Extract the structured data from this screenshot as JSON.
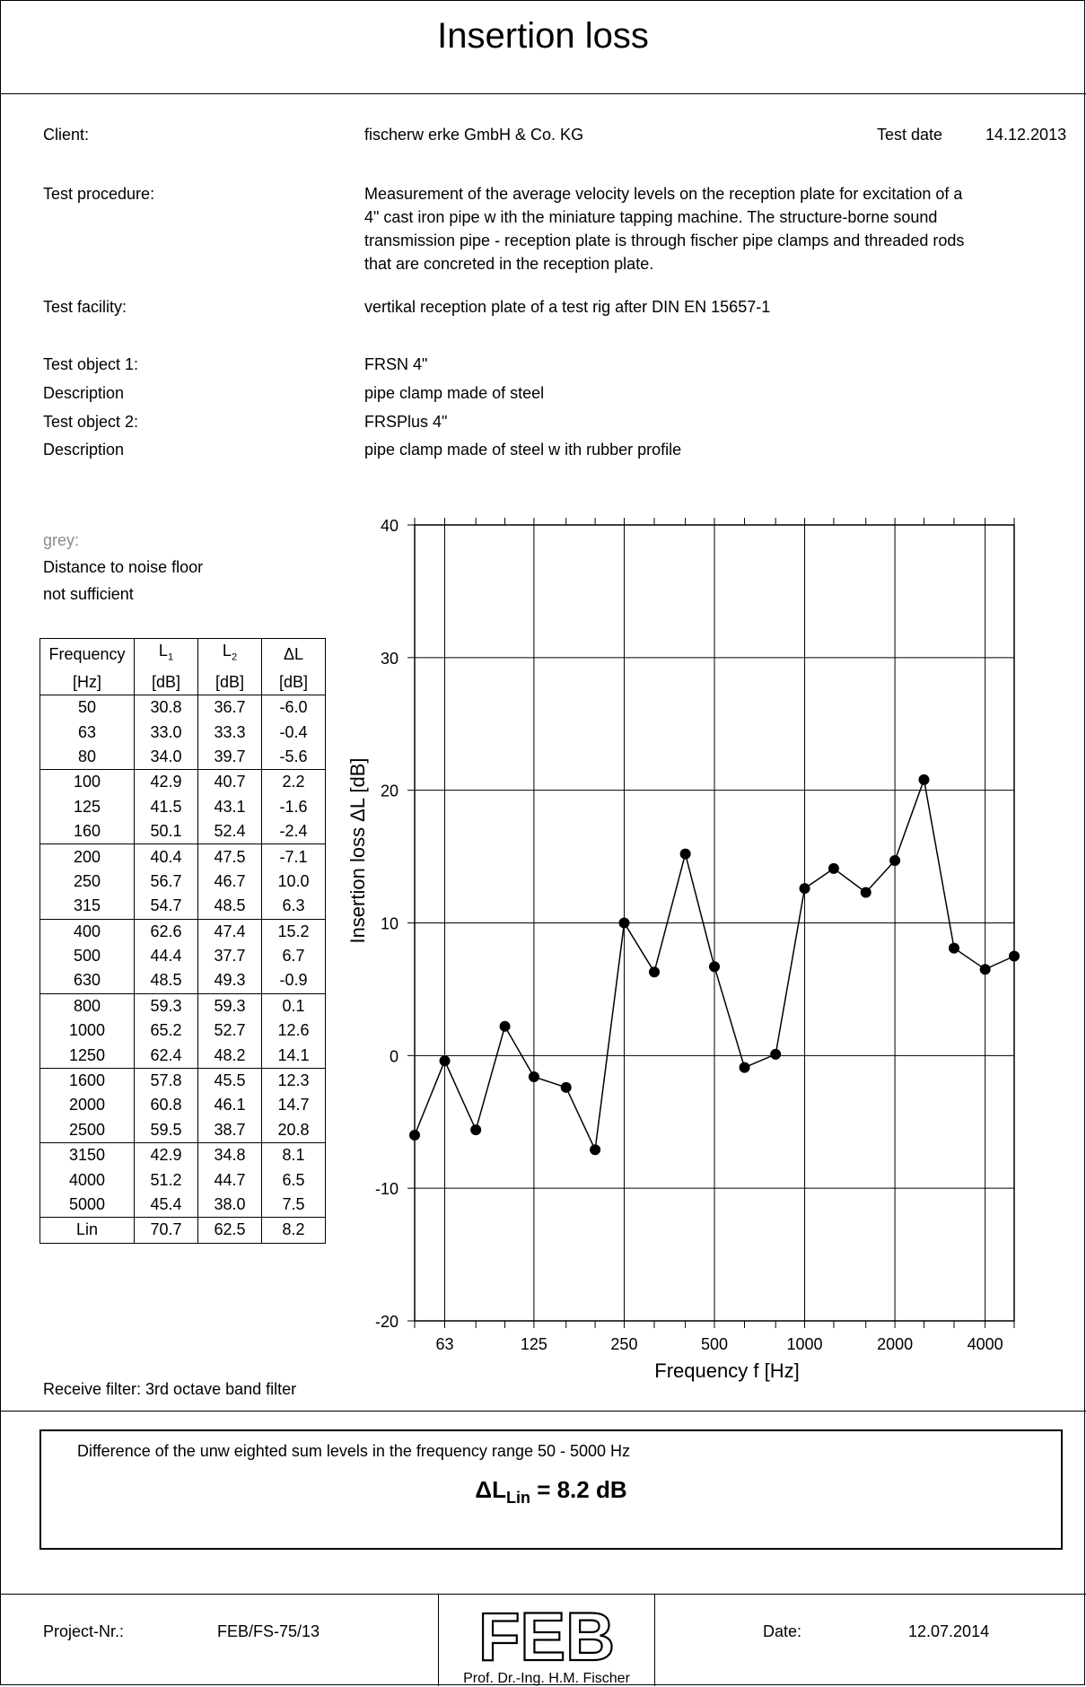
{
  "title": "Insertion loss",
  "client_label": "Client:",
  "client_value": "fischerw erke GmbH & Co. KG",
  "test_date_label": "Test date",
  "test_date_value": "14.12.2013",
  "procedure_label": "Test procedure:",
  "procedure_lines": [
    "Measurement of the average velocity levels on the reception plate for excitation of a",
    "4\" cast iron pipe w ith the miniature tapping machine. The structure-borne sound",
    "transmission pipe - reception plate is through fischer pipe clamps and threaded rods",
    "that are concreted in the reception plate."
  ],
  "facility_label": "Test facility:",
  "facility_value": "vertikal reception plate of a test rig after DIN EN 15657-1",
  "object1_label": "Test object 1:",
  "object1_value": "FRSN 4\"",
  "desc1_label": "Description",
  "desc1_value": "pipe clamp made of steel",
  "object2_label": "Test object 2:",
  "object2_value": "FRSPlus 4\"",
  "desc2_label": "Description",
  "desc2_value": "pipe clamp made of steel w ith rubber profile",
  "legend_grey": "grey:",
  "legend_line1": "Distance to noise floor",
  "legend_line2": "not sufficient",
  "table": {
    "headers": [
      "Frequency",
      "L",
      "L",
      "ΔL"
    ],
    "header_subs": [
      "",
      "1",
      "2",
      ""
    ],
    "units": [
      "[Hz]",
      "[dB]",
      "[dB]",
      "[dB]"
    ],
    "rows": [
      [
        "50",
        "30.8",
        "36.7",
        "-6.0"
      ],
      [
        "63",
        "33.0",
        "33.3",
        "-0.4"
      ],
      [
        "80",
        "34.0",
        "39.7",
        "-5.6"
      ],
      [
        "100",
        "42.9",
        "40.7",
        "2.2"
      ],
      [
        "125",
        "41.5",
        "43.1",
        "-1.6"
      ],
      [
        "160",
        "50.1",
        "52.4",
        "-2.4"
      ],
      [
        "200",
        "40.4",
        "47.5",
        "-7.1"
      ],
      [
        "250",
        "56.7",
        "46.7",
        "10.0"
      ],
      [
        "315",
        "54.7",
        "48.5",
        "6.3"
      ],
      [
        "400",
        "62.6",
        "47.4",
        "15.2"
      ],
      [
        "500",
        "44.4",
        "37.7",
        "6.7"
      ],
      [
        "630",
        "48.5",
        "49.3",
        "-0.9"
      ],
      [
        "800",
        "59.3",
        "59.3",
        "0.1"
      ],
      [
        "1000",
        "65.2",
        "52.7",
        "12.6"
      ],
      [
        "1250",
        "62.4",
        "48.2",
        "14.1"
      ],
      [
        "1600",
        "57.8",
        "45.5",
        "12.3"
      ],
      [
        "2000",
        "60.8",
        "46.1",
        "14.7"
      ],
      [
        "2500",
        "59.5",
        "38.7",
        "20.8"
      ],
      [
        "3150",
        "42.9",
        "34.8",
        "8.1"
      ],
      [
        "4000",
        "51.2",
        "44.7",
        "6.5"
      ],
      [
        "5000",
        "45.4",
        "38.0",
        "7.5"
      ],
      [
        "Lin",
        "70.7",
        "62.5",
        "8.2"
      ]
    ]
  },
  "chart_data": {
    "type": "line",
    "x_scale": "log",
    "x": [
      50,
      63,
      80,
      100,
      125,
      160,
      200,
      250,
      315,
      400,
      500,
      630,
      800,
      1000,
      1250,
      1600,
      2000,
      2500,
      3150,
      4000,
      5000
    ],
    "values": [
      -6.0,
      -0.4,
      -5.6,
      2.2,
      -1.6,
      -2.4,
      -7.1,
      10.0,
      6.3,
      15.2,
      6.7,
      -0.9,
      0.1,
      12.6,
      14.1,
      12.3,
      14.7,
      20.8,
      8.1,
      6.5,
      7.5
    ],
    "xticks": [
      "63",
      "125",
      "250",
      "500",
      "1000",
      "2000",
      "4000"
    ],
    "yticks": [
      "-20",
      "-10",
      "0",
      "10",
      "20",
      "30",
      "40"
    ],
    "ylim": [
      -20,
      40
    ],
    "xlabel": "Frequency  f [Hz]",
    "ylabel": "Insertion  loss ΔL [dB]",
    "grid": true
  },
  "filter_note": "Receive filter: 3rd octave band filter",
  "summary_text": "Difference of the unw eighted sum levels in the frequency range 50 - 5000 Hz",
  "summary_symbol": "ΔL",
  "summary_sub": "Lin",
  "summary_value": "=  8.2  dB",
  "project_label": "Project-Nr.:",
  "project_value": "FEB/FS-75/13",
  "logo_text": "FEB",
  "logo_caption": "Prof. Dr.-Ing. H.M. Fischer",
  "date_label": "Date:",
  "date_value": "12.07.2014"
}
